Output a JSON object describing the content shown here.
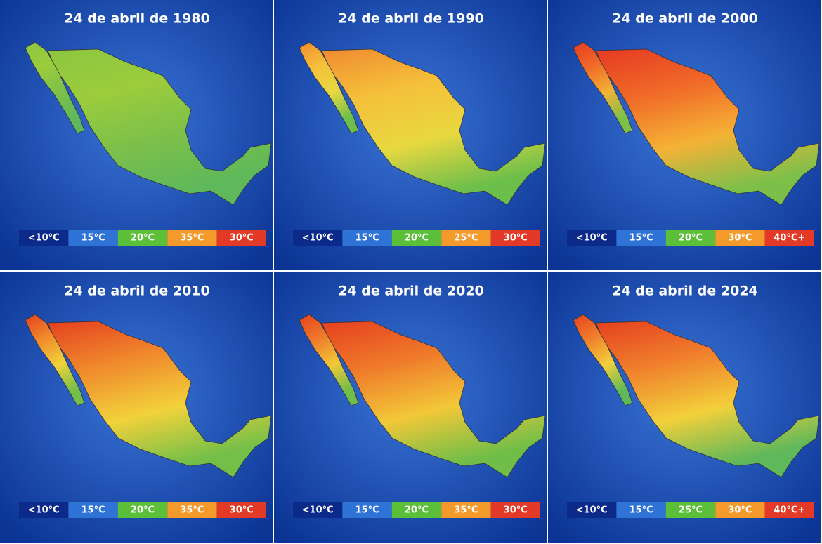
{
  "panels": [
    {
      "title": "24 de abril de 1980",
      "legend": [
        "<10°C",
        "15°C",
        "20°C",
        "35°C",
        "30°C"
      ]
    },
    {
      "title": "24 de abril de 1990",
      "legend": [
        "<10°C",
        "15°C",
        "20°C",
        "25°C",
        "30°C"
      ]
    },
    {
      "title": "24 de abril de 2000",
      "legend": [
        "<10°C",
        "15°C",
        "20°C",
        "30°C",
        "40°C+"
      ]
    },
    {
      "title": "24 de abril de 2010",
      "legend": [
        "<10°C",
        "15°C",
        "20°C",
        "35°C",
        "30°C"
      ]
    },
    {
      "title": "24 de abril de 2020",
      "legend": [
        "<10°C",
        "15°C",
        "20°C",
        "35°C",
        "30°C"
      ]
    },
    {
      "title": "24 de abril de 2024",
      "legend": [
        "<10°C",
        "15°C",
        "25°C",
        "30°C",
        "40°C+"
      ]
    }
  ]
}
